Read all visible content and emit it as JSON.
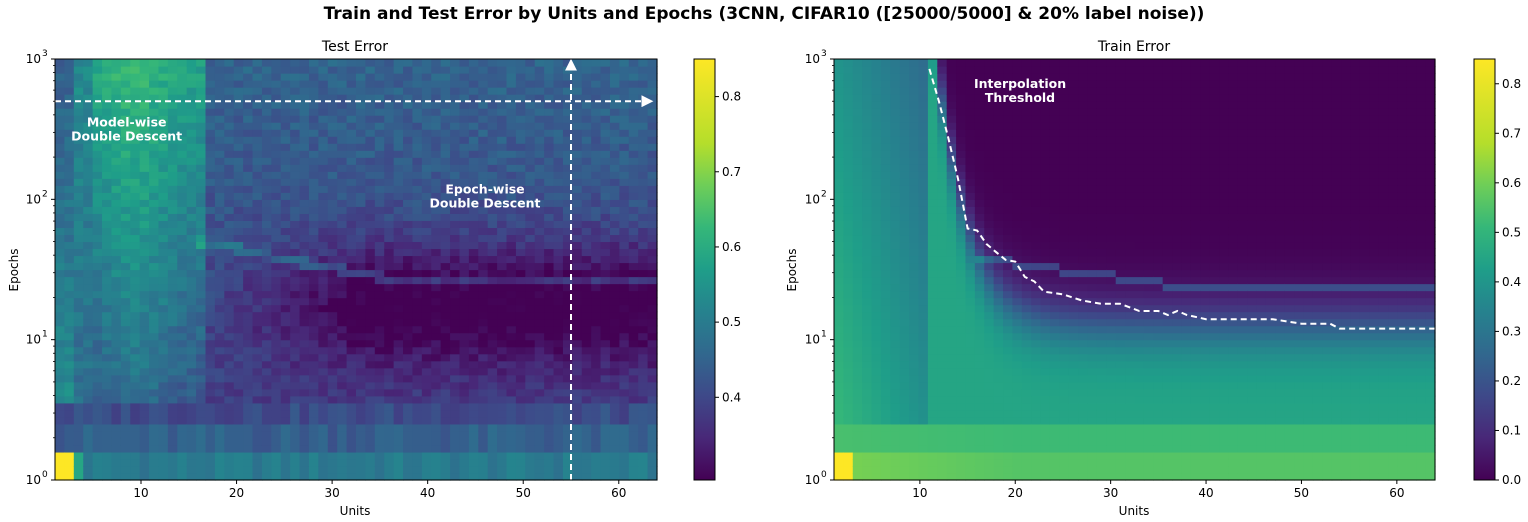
{
  "figure": {
    "title": "Train and Test Error by Units and Epochs (3CNN, CIFAR10 ([25000/5000] & 20% label noise))"
  },
  "chart_data": [
    {
      "type": "heatmap",
      "title": "Test Error",
      "xlabel": "Units",
      "ylabel": "Epochs",
      "x_range": [
        1,
        64
      ],
      "y_range": [
        1,
        1000
      ],
      "y_scale": "log",
      "x_ticks": [
        "10",
        "20",
        "30",
        "40",
        "50",
        "60"
      ],
      "x_tick_values": [
        10,
        20,
        30,
        40,
        50,
        60
      ],
      "y_ticks": [
        "10",
        "10",
        "10",
        "10"
      ],
      "y_tick_exponents": [
        "0",
        "1",
        "2",
        "3"
      ],
      "y_tick_values": [
        1,
        10,
        100,
        1000
      ],
      "colormap": "viridis",
      "colorbar_range": [
        0.29,
        0.85
      ],
      "colorbar_ticks": [
        "0.4",
        "0.5",
        "0.6",
        "0.7",
        "0.8"
      ],
      "colorbar_tick_values": [
        0.4,
        0.5,
        0.6,
        0.7,
        0.8
      ],
      "grid": false,
      "annotations": [
        {
          "id": "model-wise",
          "lines": [
            "Model-wise",
            "Double Descent"
          ],
          "x": 8.5,
          "y": 330,
          "arrow": {
            "from": [
              1,
              500
            ],
            "to": [
              64,
              500
            ],
            "style": "dashed",
            "color": "#ffffff"
          }
        },
        {
          "id": "epoch-wise",
          "lines": [
            "Epoch-wise",
            "Double Descent"
          ],
          "x": 46,
          "y": 110,
          "arrow": {
            "from": [
              55,
              1
            ],
            "to": [
              55,
              1000
            ],
            "style": "dashed",
            "color": "#ffffff"
          }
        }
      ],
      "description_values": {
        "epoch1_low_units": 0.85,
        "epoch1_plateau": 0.52,
        "peak_band_units": [
          5,
          15
        ],
        "peak_band_value": 0.6,
        "late_epoch_high_units": 0.4,
        "mid_epoch_min": 0.32
      }
    },
    {
      "type": "heatmap",
      "title": "Train Error",
      "xlabel": "Units",
      "ylabel": "Epochs",
      "x_range": [
        1,
        64
      ],
      "y_range": [
        1,
        1000
      ],
      "y_scale": "log",
      "x_ticks": [
        "10",
        "20",
        "30",
        "40",
        "50",
        "60"
      ],
      "x_tick_values": [
        10,
        20,
        30,
        40,
        50,
        60
      ],
      "y_ticks": [
        "10",
        "10",
        "10",
        "10"
      ],
      "y_tick_exponents": [
        "0",
        "1",
        "2",
        "3"
      ],
      "y_tick_values": [
        1,
        10,
        100,
        1000
      ],
      "colormap": "viridis",
      "colorbar_range": [
        0.0,
        0.85
      ],
      "colorbar_ticks": [
        "0.0",
        "0.1",
        "0.2",
        "0.3",
        "0.4",
        "0.5",
        "0.6",
        "0.7",
        "0.8"
      ],
      "colorbar_tick_values": [
        0.0,
        0.1,
        0.2,
        0.3,
        0.4,
        0.5,
        0.6,
        0.7,
        0.8
      ],
      "grid": false,
      "annotations": [
        {
          "id": "interpolation",
          "lines": [
            "Interpolation",
            "Threshold"
          ],
          "x": 20.5,
          "y": 620
        }
      ],
      "threshold_curve": {
        "style": "dashed",
        "color": "#ffffff",
        "x": [
          11,
          12,
          13,
          14,
          15,
          16,
          17,
          18,
          19,
          20,
          21,
          22,
          23,
          25,
          27,
          29,
          31,
          33,
          35,
          36,
          37,
          38,
          40,
          43,
          47,
          50,
          53,
          54,
          58,
          64
        ],
        "y": [
          850,
          500,
          270,
          140,
          62,
          60,
          48,
          42,
          37,
          36,
          28,
          26,
          22,
          21,
          19,
          18,
          18,
          16,
          16,
          15,
          16,
          15,
          14,
          14,
          14,
          13,
          13,
          12,
          12,
          12
        ]
      }
    }
  ]
}
